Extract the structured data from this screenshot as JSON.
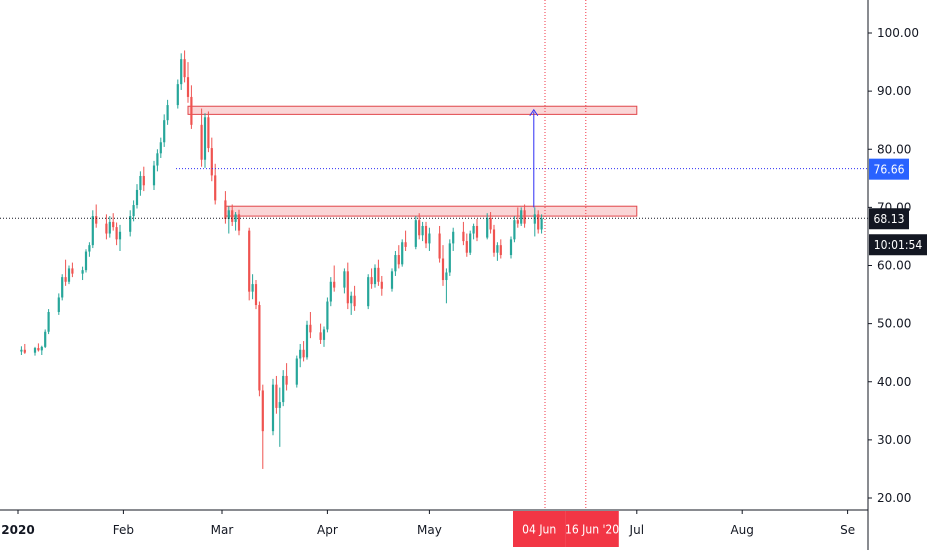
{
  "chart_data": {
    "type": "candlestick",
    "y_axis": {
      "ticks": [
        "100.00",
        "90.00",
        "80.00",
        "70.00",
        "60.00",
        "50.00",
        "40.00",
        "30.00",
        "20.00"
      ],
      "tick_values": [
        100,
        90,
        80,
        70,
        60,
        50,
        40,
        30,
        20
      ],
      "range": [
        17.5,
        104
      ],
      "side": "right"
    },
    "x_axis": {
      "ticks": [
        {
          "label": "2020",
          "date": "2020-01-01",
          "bold": true
        },
        {
          "label": "Feb",
          "date": "2020-02-01"
        },
        {
          "label": "Mar",
          "date": "2020-03-01"
        },
        {
          "label": "Apr",
          "date": "2020-04-01"
        },
        {
          "label": "May",
          "date": "2020-05-01"
        },
        {
          "label": "Jul",
          "date": "2020-07-01"
        },
        {
          "label": "Aug",
          "date": "2020-08-01"
        },
        {
          "label": "Se",
          "date": "2020-09-01"
        }
      ],
      "range": [
        "2019-12-31",
        "2020-09-02"
      ]
    },
    "grid": false,
    "series": [
      {
        "candles": [
          [
            "2020-01-02",
            45.2,
            46.1,
            44.6,
            45.5
          ],
          [
            "2020-01-03",
            45.5,
            46.5,
            44.8,
            45.0
          ],
          [
            "2020-01-06",
            45.0,
            46.0,
            44.5,
            45.8
          ],
          [
            "2020-01-07",
            45.8,
            46.6,
            45.2,
            45.4
          ],
          [
            "2020-01-08",
            45.4,
            46.2,
            44.6,
            46.0
          ],
          [
            "2020-01-09",
            46.0,
            49.0,
            45.8,
            48.6
          ],
          [
            "2020-01-10",
            48.6,
            52.5,
            48.2,
            52.0
          ],
          [
            "2020-01-13",
            52.0,
            55.2,
            51.5,
            54.5
          ],
          [
            "2020-01-14",
            54.5,
            58.5,
            54.0,
            58.0
          ],
          [
            "2020-01-15",
            58.0,
            61.0,
            56.5,
            57.2
          ],
          [
            "2020-01-16",
            57.2,
            60.0,
            56.8,
            59.5
          ],
          [
            "2020-01-17",
            59.5,
            60.5,
            58.0,
            58.6
          ],
          [
            "2020-01-20",
            58.6,
            59.8,
            57.5,
            59.2
          ],
          [
            "2020-01-21",
            59.2,
            62.8,
            58.8,
            62.4
          ],
          [
            "2020-01-22",
            62.4,
            64.0,
            61.5,
            63.5
          ],
          [
            "2020-01-23",
            63.5,
            69.5,
            63.0,
            68.5
          ],
          [
            "2020-01-24",
            68.5,
            70.5,
            66.5,
            67.2
          ],
          [
            "2020-01-27",
            67.2,
            68.8,
            64.5,
            65.5
          ],
          [
            "2020-01-28",
            65.5,
            68.5,
            64.8,
            67.5
          ],
          [
            "2020-01-29",
            67.5,
            69.0,
            66.0,
            66.6
          ],
          [
            "2020-01-30",
            66.6,
            67.4,
            63.5,
            64.5
          ],
          [
            "2020-01-31",
            64.5,
            67.0,
            62.5,
            65.8
          ],
          [
            "2020-02-03",
            65.8,
            69.5,
            65.0,
            68.5
          ],
          [
            "2020-02-04",
            68.5,
            71.2,
            67.6,
            70.4
          ],
          [
            "2020-02-05",
            70.4,
            74.0,
            69.8,
            73.0
          ],
          [
            "2020-02-06",
            73.0,
            76.2,
            72.0,
            75.4
          ],
          [
            "2020-02-07",
            75.4,
            77.0,
            72.8,
            73.8
          ],
          [
            "2020-02-10",
            73.8,
            78.0,
            73.0,
            77.2
          ],
          [
            "2020-02-11",
            77.2,
            80.0,
            76.2,
            79.3
          ],
          [
            "2020-02-12",
            79.3,
            82.0,
            78.5,
            81.2
          ],
          [
            "2020-02-13",
            81.2,
            86.0,
            80.4,
            85.0
          ],
          [
            "2020-02-14",
            85.0,
            88.5,
            84.2,
            87.6
          ],
          [
            "2020-02-17",
            87.6,
            92.0,
            87.0,
            91.2
          ],
          [
            "2020-02-18",
            91.2,
            96.5,
            90.2,
            95.5
          ],
          [
            "2020-02-19",
            95.5,
            97.0,
            91.5,
            92.4
          ],
          [
            "2020-02-20",
            92.4,
            95.0,
            88.0,
            89.0
          ],
          [
            "2020-02-21",
            89.0,
            91.0,
            83.5,
            84.2
          ],
          [
            "2020-02-24",
            84.2,
            87.0,
            77.0,
            78.2
          ],
          [
            "2020-02-25",
            78.2,
            86.2,
            76.8,
            85.5
          ],
          [
            "2020-02-26",
            85.5,
            86.5,
            79.5,
            80.2
          ],
          [
            "2020-02-27",
            80.2,
            82.0,
            74.5,
            75.5
          ],
          [
            "2020-02-28",
            75.5,
            77.5,
            70.5,
            71.2
          ],
          [
            "2020-03-02",
            71.2,
            72.8,
            67.2,
            68.0
          ],
          [
            "2020-03-03",
            68.0,
            70.2,
            65.5,
            69.5
          ],
          [
            "2020-03-04",
            69.5,
            70.5,
            66.8,
            67.5
          ],
          [
            "2020-03-05",
            67.5,
            69.2,
            66.0,
            68.8
          ],
          [
            "2020-03-06",
            68.8,
            69.6,
            65.2,
            66.0
          ],
          [
            "2020-03-09",
            66.0,
            66.5,
            54.0,
            55.5
          ],
          [
            "2020-03-10",
            55.5,
            58.5,
            54.2,
            56.8
          ],
          [
            "2020-03-11",
            56.8,
            57.5,
            52.5,
            53.2
          ],
          [
            "2020-03-12",
            53.2,
            53.8,
            37.5,
            38.5
          ],
          [
            "2020-03-13",
            38.5,
            39.5,
            25.0,
            31.5
          ],
          [
            "2020-03-16",
            31.5,
            40.5,
            30.8,
            39.5
          ],
          [
            "2020-03-17",
            39.5,
            41.0,
            34.5,
            35.5
          ],
          [
            "2020-03-18",
            35.5,
            39.0,
            28.8,
            36.5
          ],
          [
            "2020-03-19",
            36.5,
            42.0,
            35.8,
            41.0
          ],
          [
            "2020-03-20",
            41.0,
            43.2,
            38.5,
            39.5
          ],
          [
            "2020-03-23",
            39.5,
            44.5,
            39.0,
            44.0
          ],
          [
            "2020-03-24",
            44.0,
            46.5,
            42.5,
            45.5
          ],
          [
            "2020-03-25",
            45.5,
            47.0,
            43.5,
            44.2
          ],
          [
            "2020-03-26",
            44.2,
            50.5,
            43.8,
            49.8
          ],
          [
            "2020-03-27",
            49.8,
            52.0,
            47.5,
            48.5
          ],
          [
            "2020-03-30",
            48.5,
            50.0,
            46.5,
            47.2
          ],
          [
            "2020-03-31",
            47.2,
            49.5,
            46.0,
            49.0
          ],
          [
            "2020-04-01",
            49.0,
            54.5,
            48.5,
            53.8
          ],
          [
            "2020-04-02",
            53.8,
            58.0,
            53.0,
            57.2
          ],
          [
            "2020-04-03",
            57.2,
            60.0,
            55.5,
            56.2
          ],
          [
            "2020-04-06",
            56.2,
            59.5,
            55.2,
            59.0
          ],
          [
            "2020-04-07",
            59.0,
            60.5,
            52.5,
            53.5
          ],
          [
            "2020-04-08",
            53.5,
            55.5,
            51.5,
            54.8
          ],
          [
            "2020-04-09",
            54.8,
            56.5,
            52.2,
            53.0
          ],
          [
            "2020-04-13",
            53.0,
            58.5,
            52.5,
            58.0
          ],
          [
            "2020-04-14",
            58.0,
            59.5,
            56.0,
            56.8
          ],
          [
            "2020-04-15",
            56.8,
            60.2,
            56.2,
            59.6
          ],
          [
            "2020-04-16",
            59.6,
            61.0,
            56.5,
            57.2
          ],
          [
            "2020-04-17",
            57.2,
            58.2,
            54.8,
            56.0
          ],
          [
            "2020-04-20",
            56.0,
            59.5,
            55.5,
            59.0
          ],
          [
            "2020-04-21",
            59.0,
            62.5,
            58.2,
            61.8
          ],
          [
            "2020-04-22",
            61.8,
            63.5,
            59.5,
            60.2
          ],
          [
            "2020-04-23",
            60.2,
            64.5,
            59.8,
            64.0
          ],
          [
            "2020-04-24",
            64.0,
            66.0,
            62.5,
            63.2
          ],
          [
            "2020-04-27",
            63.2,
            68.5,
            62.8,
            67.8
          ],
          [
            "2020-04-28",
            67.8,
            69.0,
            64.5,
            65.2
          ],
          [
            "2020-04-29",
            65.2,
            67.5,
            64.2,
            66.8
          ],
          [
            "2020-04-30",
            66.8,
            67.5,
            63.0,
            63.8
          ],
          [
            "2020-05-01",
            63.8,
            66.5,
            62.5,
            65.5
          ],
          [
            "2020-05-04",
            65.5,
            66.8,
            60.5,
            61.2
          ],
          [
            "2020-05-05",
            61.2,
            63.5,
            56.5,
            57.5
          ],
          [
            "2020-05-06",
            57.5,
            59.5,
            53.5,
            58.8
          ],
          [
            "2020-05-07",
            58.8,
            64.5,
            58.2,
            63.8
          ],
          [
            "2020-05-08",
            63.8,
            66.5,
            62.5,
            65.8
          ],
          [
            "2020-05-11",
            65.8,
            67.5,
            63.5,
            64.2
          ],
          [
            "2020-05-12",
            64.2,
            65.5,
            61.5,
            62.2
          ],
          [
            "2020-05-13",
            62.2,
            66.0,
            61.8,
            65.5
          ],
          [
            "2020-05-14",
            65.5,
            67.2,
            64.5,
            66.8
          ],
          [
            "2020-05-15",
            66.8,
            68.0,
            64.2,
            64.8
          ],
          [
            "2020-05-18",
            64.8,
            69.0,
            64.5,
            68.2
          ],
          [
            "2020-05-19",
            68.2,
            69.2,
            65.5,
            66.2
          ],
          [
            "2020-05-20",
            66.2,
            67.0,
            61.5,
            62.2
          ],
          [
            "2020-05-21",
            62.2,
            64.0,
            60.8,
            63.5
          ],
          [
            "2020-05-22",
            63.5,
            64.5,
            61.2,
            61.8
          ],
          [
            "2020-05-25",
            61.8,
            65.0,
            61.2,
            64.5
          ],
          [
            "2020-05-26",
            64.5,
            68.5,
            64.0,
            67.8
          ],
          [
            "2020-05-27",
            67.8,
            70.0,
            66.5,
            67.2
          ],
          [
            "2020-05-28",
            67.2,
            70.0,
            66.8,
            69.5
          ],
          [
            "2020-05-29",
            69.5,
            70.5,
            66.5,
            67.2
          ],
          [
            "2020-06-01",
            67.2,
            70.0,
            65.0,
            68.8
          ],
          [
            "2020-06-02",
            68.8,
            69.5,
            65.5,
            66.2
          ],
          [
            "2020-06-03",
            66.2,
            68.8,
            65.5,
            68.13
          ]
        ]
      }
    ],
    "annotations": {
      "last_price": "68.13",
      "countdown": "10:01:54",
      "target_price": "76.66",
      "target_value": 76.66,
      "resistance_zone": {
        "from": "2020-03-02",
        "to": "2020-07-01",
        "low": 68.5,
        "high": 70.2
      },
      "target_zone": {
        "from": "2020-02-20",
        "to": "2020-07-01",
        "low": 86.0,
        "high": 87.4
      },
      "arrow": {
        "date": "2020-06-01",
        "from": 70.0,
        "to": 86.8
      },
      "vertical_markers": [
        {
          "label": "04 Jun",
          "date": "2020-06-04"
        },
        {
          "label": "16 Jun '20",
          "date": "2020-06-16"
        }
      ]
    },
    "colors": {
      "up": "#26a69a",
      "down": "#ef5350",
      "zone_fill": "#f8c8ca",
      "zone_border": "#e0464a",
      "target_line": "#2e2ef5",
      "badge_blue": "#2962ff",
      "badge_black": "#131722",
      "marker_red": "#f23645"
    }
  }
}
